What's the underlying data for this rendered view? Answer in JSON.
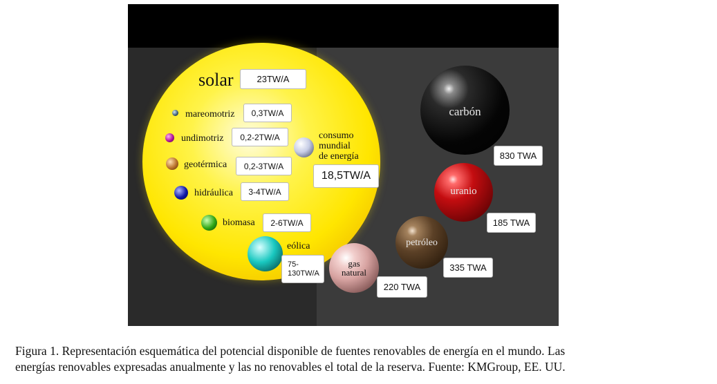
{
  "diagram": {
    "solar": {
      "label": "solar",
      "value": "23TW/A"
    },
    "consumption": {
      "label_lines": [
        "consumo",
        "mundial",
        "de energía"
      ],
      "value": "18,5TW/A"
    },
    "renewables": [
      {
        "label": "mareomotriz",
        "value": "0,3TW/A",
        "color": "#3c5a70"
      },
      {
        "label": "undimotriz",
        "value": "0,2-2TW/A",
        "color": "#b0139a"
      },
      {
        "label": "geotérmica",
        "value": "0,2-3TW/A",
        "color": "#b8712a"
      },
      {
        "label": "hidráulica",
        "value": "3-4TW/A",
        "color": "#0f18a8"
      },
      {
        "label": "biomasa",
        "value": "2-6TW/A",
        "color": "#2fa614"
      },
      {
        "label": "eólica",
        "value_lines": [
          "75-",
          "130TW/A"
        ],
        "color": "#19c8c0"
      }
    ],
    "nonrenewables": [
      {
        "label": "carbón",
        "value": "830 TWA",
        "color": "#050505"
      },
      {
        "label": "uranio",
        "value": "185 TWA",
        "color": "#c40d10"
      },
      {
        "label": "petróleo",
        "value": "335 TWA",
        "color": "#5c4127"
      },
      {
        "label_lines": [
          "gas",
          "natural"
        ],
        "value": "220 TWA",
        "color": "#d7a3a1"
      }
    ]
  },
  "caption": {
    "line1": "Figura 1. Representación esquemática del potencial disponible de fuentes renovables de energía en el mundo. Las",
    "line2": "energías renovables expresadas anualmente y las no renovables el total de la reserva. Fuente: KMGroup, EE. UU."
  }
}
